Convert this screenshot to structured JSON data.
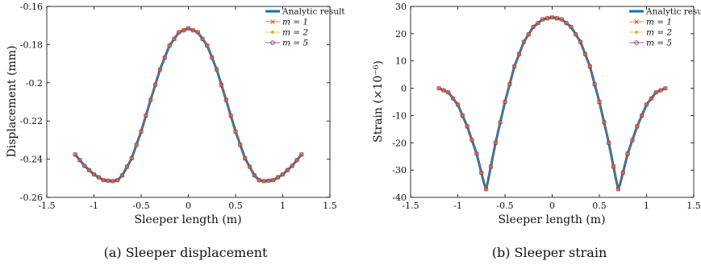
{
  "chart_data": [
    {
      "type": "line",
      "caption": "(a) Sleeper displacement",
      "xlabel": "Sleeper length (m)",
      "ylabel": "Displacement (mm)",
      "xlim": [
        -1.5,
        1.5
      ],
      "ylim": [
        -0.26,
        -0.16
      ],
      "xticks": [
        "-1.5",
        "-1",
        "-0.5",
        "0",
        "0.5",
        "1",
        "1.5"
      ],
      "yticks": [
        "-0.26",
        "-0.24",
        "-0.22",
        "-0.2",
        "-0.18",
        "-0.16"
      ],
      "legend_position": "top-right",
      "legend": [
        "Analytic result",
        "m = 1",
        "m = 2",
        "m = 5"
      ],
      "series_colors": [
        "#0072bd",
        "#d95319",
        "#edb120",
        "#7e2f8e"
      ],
      "series": [
        {
          "name": "Analytic result",
          "x": [
            -1.2,
            -1.1,
            -1.0,
            -0.9,
            -0.8,
            -0.75,
            -0.7,
            -0.6,
            -0.5,
            -0.4,
            -0.3,
            -0.2,
            -0.1,
            0.0,
            0.1,
            0.2,
            0.3,
            0.4,
            0.5,
            0.6,
            0.7,
            0.75,
            0.8,
            0.9,
            1.0,
            1.1,
            1.2
          ],
          "y": [
            -0.2375,
            -0.2435,
            -0.248,
            -0.251,
            -0.2515,
            -0.251,
            -0.2485,
            -0.2395,
            -0.2255,
            -0.209,
            -0.193,
            -0.1805,
            -0.1735,
            -0.1715,
            -0.1735,
            -0.1805,
            -0.193,
            -0.209,
            -0.2255,
            -0.2395,
            -0.2485,
            -0.251,
            -0.2515,
            -0.251,
            -0.248,
            -0.2435,
            -0.2375
          ]
        },
        {
          "name": "m = 1",
          "marker": "x",
          "x": [],
          "y": []
        },
        {
          "name": "m = 2",
          "marker": "star",
          "x": [],
          "y": []
        },
        {
          "name": "m = 5",
          "marker": "circle",
          "x": [],
          "y": []
        }
      ]
    },
    {
      "type": "line",
      "caption": "(b) Sleeper strain",
      "xlabel": "Sleeper length (m)",
      "ylabel": "Strain (×10⁻⁶)",
      "xlim": [
        -1.5,
        1.5
      ],
      "ylim": [
        -40,
        30
      ],
      "xticks": [
        "-1.5",
        "-1",
        "-0.5",
        "0",
        "0.5",
        "1",
        "1.5"
      ],
      "yticks": [
        "-40",
        "-30",
        "-20",
        "-10",
        "0",
        "10",
        "20",
        "30"
      ],
      "legend_position": "top-right",
      "legend": [
        "Analytic result",
        "m = 1",
        "m = 2",
        "m = 5"
      ],
      "series_colors": [
        "#0072bd",
        "#d95319",
        "#edb120",
        "#7e2f8e"
      ],
      "series": [
        {
          "name": "Analytic result",
          "x": [
            -1.2,
            -1.1,
            -1.0,
            -0.9,
            -0.8,
            -0.75,
            -0.72,
            -0.7,
            -0.68,
            -0.6,
            -0.5,
            -0.4,
            -0.3,
            -0.2,
            -0.1,
            0.0,
            0.1,
            0.2,
            0.3,
            0.4,
            0.5,
            0.6,
            0.68,
            0.7,
            0.72,
            0.75,
            0.8,
            0.9,
            1.0,
            1.1,
            1.2
          ],
          "y": [
            0,
            -1.5,
            -6,
            -14,
            -24,
            -31,
            -35,
            -37,
            -34,
            -20,
            -5,
            8,
            17,
            22.5,
            25.3,
            26,
            25.3,
            22.5,
            17,
            8,
            -5,
            -20,
            -34,
            -37,
            -35,
            -31,
            -24,
            -14,
            -6,
            -1.5,
            0
          ]
        },
        {
          "name": "m = 1",
          "marker": "x",
          "x": [],
          "y": []
        },
        {
          "name": "m = 2",
          "marker": "star",
          "x": [],
          "y": []
        },
        {
          "name": "m = 5",
          "marker": "circle",
          "x": [],
          "y": []
        }
      ]
    }
  ]
}
